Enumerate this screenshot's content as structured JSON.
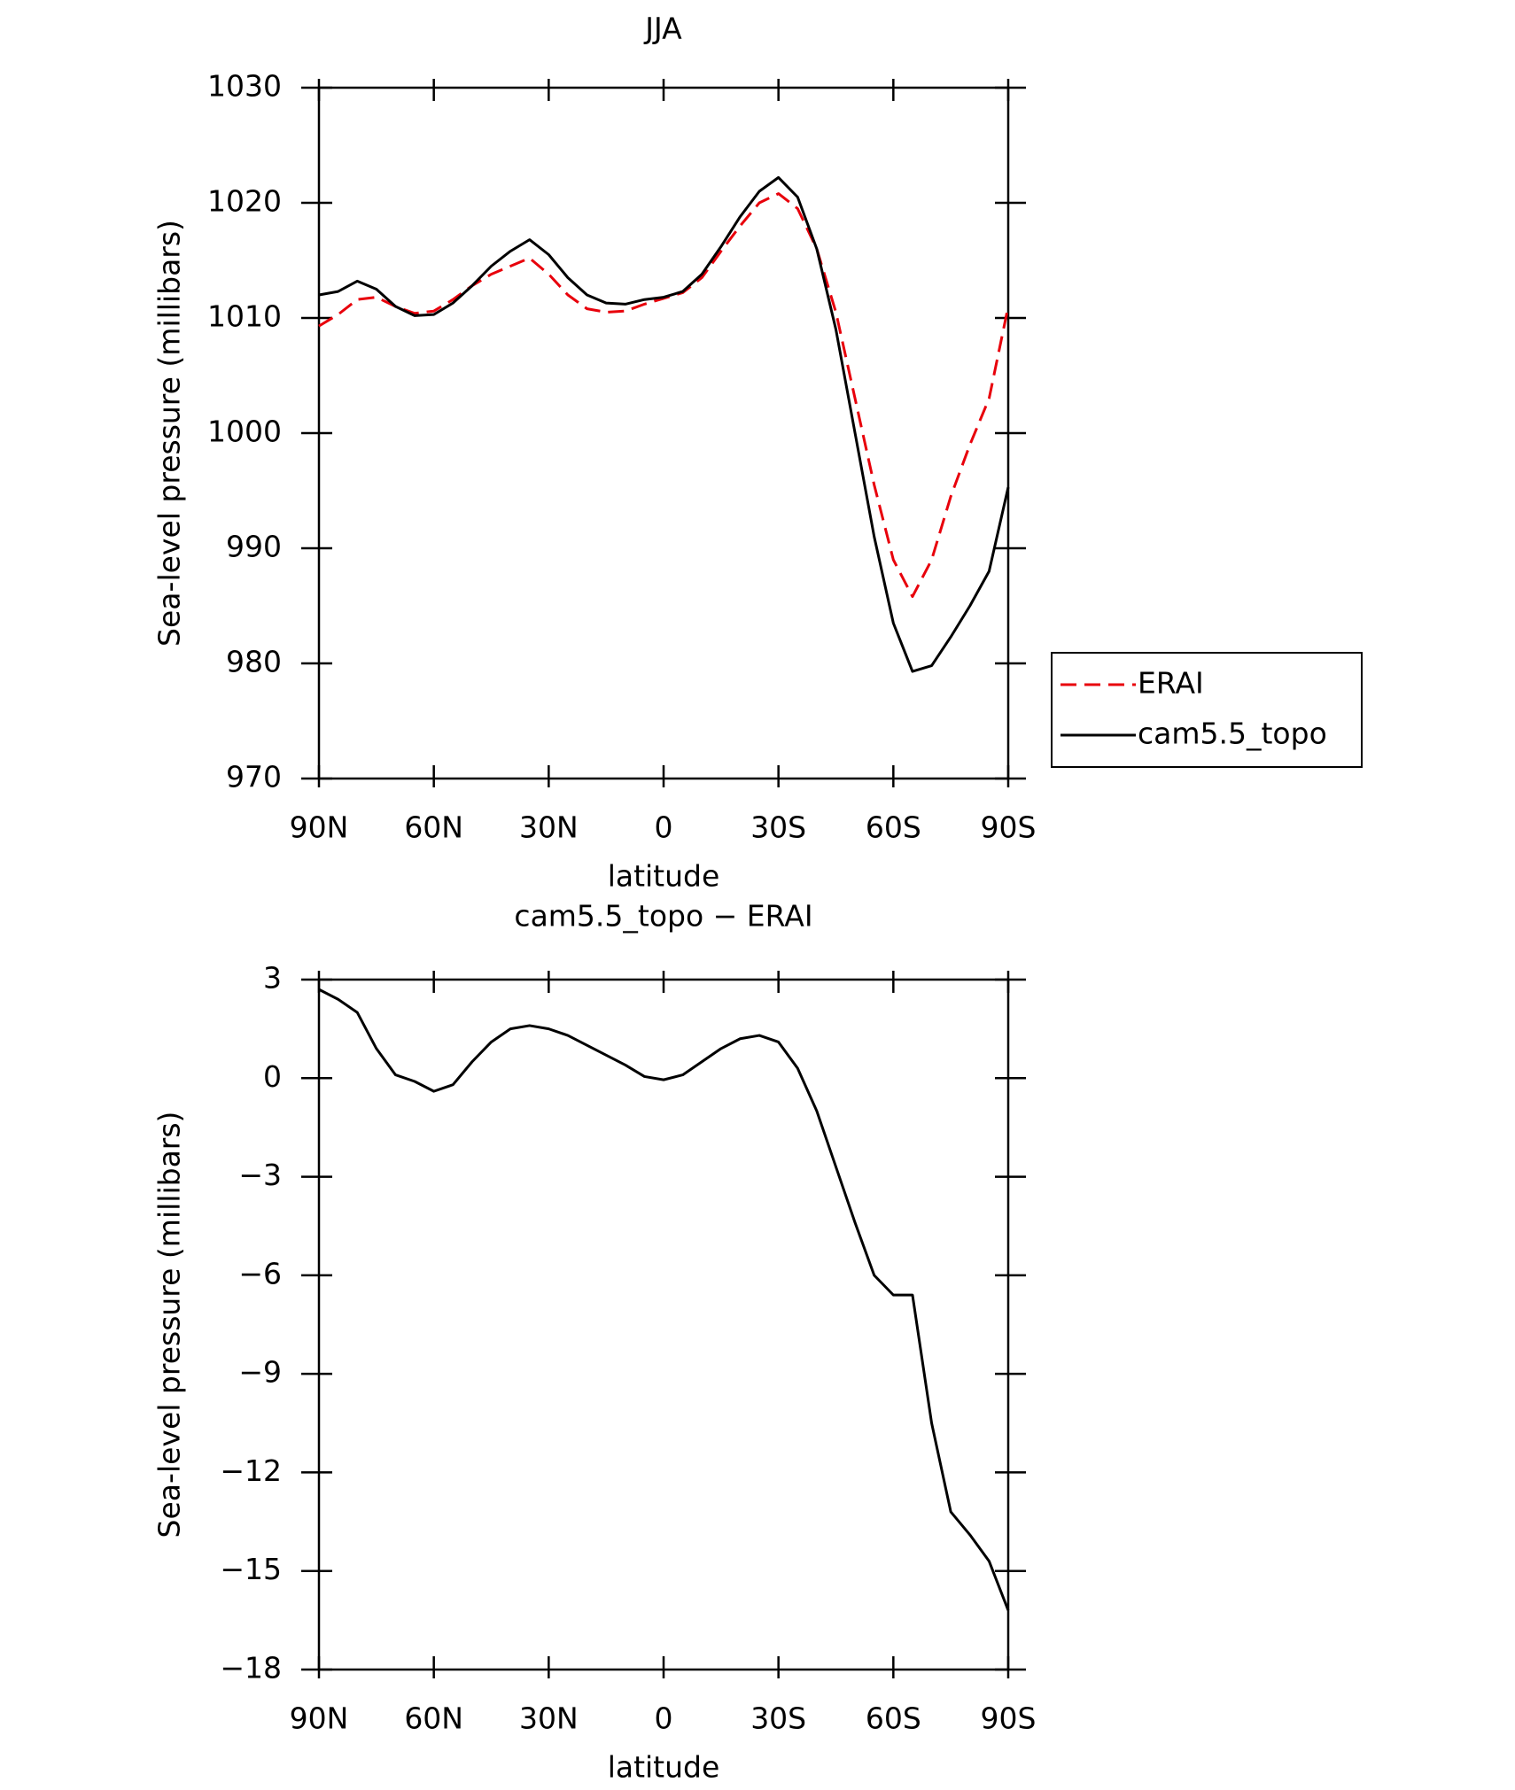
{
  "chart_data": [
    {
      "type": "line",
      "title": "JJA",
      "x_label": "latitude",
      "y_label": "Sea-level pressure (millibars)",
      "x": [
        90,
        85,
        80,
        75,
        70,
        65,
        60,
        55,
        50,
        45,
        40,
        35,
        30,
        25,
        20,
        15,
        10,
        5,
        0,
        -5,
        -10,
        -15,
        -20,
        -25,
        -30,
        -35,
        -40,
        -45,
        -50,
        -55,
        -60,
        -65,
        -70,
        -75,
        -80,
        -85,
        -90
      ],
      "series": [
        {
          "name": "ERAI",
          "color": "#e8000b",
          "line_style": "dashed",
          "values": [
            1009.3,
            1010.3,
            1011.6,
            1011.8,
            1011,
            1010.4,
            1010.6,
            1011.6,
            1012.8,
            1013.8,
            1014.5,
            1015.2,
            1013.8,
            1012,
            1010.8,
            1010.5,
            1010.6,
            1011.2,
            1011.7,
            1012.2,
            1013.5,
            1015.8,
            1018,
            1020,
            1020.8,
            1019.5,
            1016,
            1010.5,
            1003,
            995.5,
            989,
            985.8,
            989,
            994.5,
            999,
            1003,
            1011
          ]
        },
        {
          "name": "cam5.5_topo",
          "color": "#000000",
          "line_style": "solid",
          "values": [
            1012,
            1012.3,
            1013.2,
            1012.5,
            1011,
            1010.2,
            1010.3,
            1011.3,
            1012.8,
            1014.5,
            1015.8,
            1016.8,
            1015.5,
            1013.5,
            1012,
            1011.3,
            1011.2,
            1011.6,
            1011.8,
            1012.3,
            1013.8,
            1016.2,
            1018.8,
            1021,
            1022.2,
            1020.5,
            1016,
            1009,
            1000,
            991,
            983.5,
            979.3,
            979.8,
            982.3,
            985,
            988,
            995.3
          ]
        }
      ],
      "xlim": [
        90,
        -90
      ],
      "xticks": [
        {
          "value": 90,
          "label": "90N"
        },
        {
          "value": 60,
          "label": "60N"
        },
        {
          "value": 30,
          "label": "30N"
        },
        0,
        {
          "value": -30,
          "label": "30S"
        },
        {
          "value": -60,
          "label": "60S"
        },
        {
          "value": -90,
          "label": "90S"
        }
      ],
      "ylim": [
        970,
        1030
      ],
      "yticks": [
        970,
        980,
        990,
        1000,
        1010,
        1020,
        1030
      ],
      "legend": "right"
    },
    {
      "type": "line",
      "title": "cam5.5_topo − ERAI",
      "x_label": "latitude",
      "y_label": "Sea-level pressure (millibars)",
      "x": [
        90,
        85,
        80,
        75,
        70,
        65,
        60,
        55,
        50,
        45,
        40,
        35,
        30,
        25,
        20,
        15,
        10,
        5,
        0,
        -5,
        -10,
        -15,
        -20,
        -25,
        -30,
        -35,
        -40,
        -45,
        -50,
        -55,
        -60,
        -65,
        -70,
        -75,
        -80,
        -85,
        -90
      ],
      "series": [
        {
          "color": "#000000",
          "line_style": "solid",
          "values": [
            2.7,
            2.4,
            2.0,
            0.9,
            0.1,
            -0.1,
            -0.4,
            -0.2,
            0.5,
            1.1,
            1.5,
            1.6,
            1.5,
            1.3,
            1.0,
            0.7,
            0.4,
            0.05,
            -0.05,
            0.1,
            0.5,
            0.9,
            1.2,
            1.3,
            1.1,
            0.3,
            -1.0,
            -2.7,
            -4.4,
            -6.0,
            -6.6,
            -6.6,
            -10.5,
            -13.2,
            -13.9,
            -14.7,
            -16.2
          ]
        }
      ],
      "xlim": [
        90,
        -90
      ],
      "xticks": [
        {
          "value": 90,
          "label": "90N"
        },
        {
          "value": 60,
          "label": "60N"
        },
        {
          "value": 30,
          "label": "30N"
        },
        0,
        {
          "value": -30,
          "label": "30S"
        },
        {
          "value": -60,
          "label": "60S"
        },
        {
          "value": -90,
          "label": "90S"
        }
      ],
      "ylim": [
        -18,
        3
      ],
      "yticks": [
        {
          "value": -18,
          "label": "−18"
        },
        {
          "value": -15,
          "label": "−15"
        },
        {
          "value": -12,
          "label": "−12"
        },
        {
          "value": -9,
          "label": "−9"
        },
        {
          "value": -6,
          "label": "−6"
        },
        {
          "value": -3,
          "label": "−3"
        },
        0,
        3
      ]
    }
  ]
}
